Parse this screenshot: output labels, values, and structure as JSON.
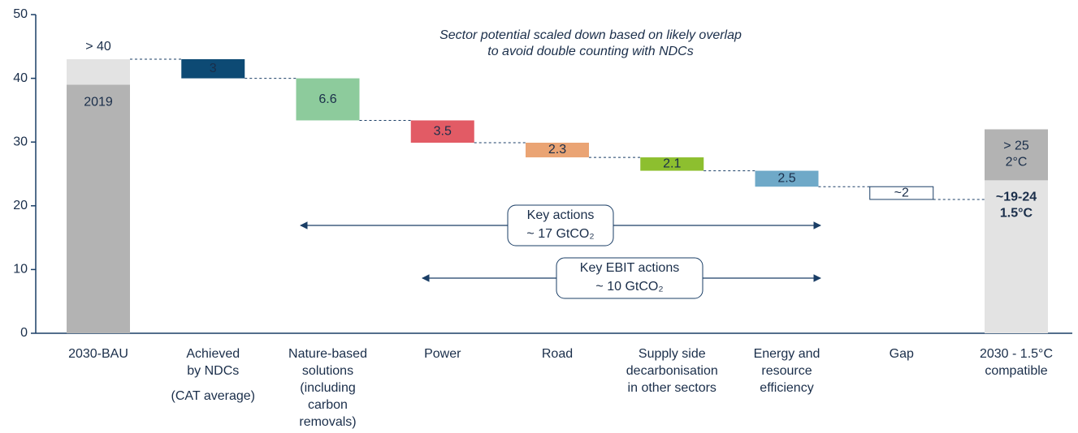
{
  "chart_data": {
    "type": "waterfall",
    "annotation": [
      "Sector potential scaled down based on likely overlap",
      "to avoid double counting with NDCs"
    ],
    "categories": [
      [
        "2030-BAU"
      ],
      [
        "Achieved",
        "by NDCs",
        "(CAT average)"
      ],
      [
        "Nature-based",
        "solutions",
        "(including",
        "carbon",
        "removals)"
      ],
      [
        "Power"
      ],
      [
        "Road"
      ],
      [
        "Supply side",
        "decarbonisation",
        "in other sectors"
      ],
      [
        "Energy and",
        "resource",
        "efficiency"
      ],
      [
        "Gap"
      ],
      [
        "2030 - 1.5°C",
        "compatible"
      ]
    ],
    "first": {
      "values": [
        39,
        4
      ],
      "colors": [
        "#b3b3b3",
        "#e3e3e3"
      ],
      "labels": [
        "2019"
      ],
      "top_label": "> 40"
    },
    "steps": {
      "values": [
        3,
        6.6,
        3.5,
        2.3,
        2.1,
        2.5
      ],
      "colors": [
        "#0d4a74",
        "#8dcb9c",
        "#e25b65",
        "#eaa474",
        "#8dbf2f",
        "#6fa9c8"
      ]
    },
    "gap": {
      "value": 2,
      "value_label": "~2"
    },
    "last": {
      "values": [
        24,
        8
      ],
      "colors": [
        "#e3e3e3",
        "#b3b3b3"
      ],
      "labels": [
        [
          "~19-24",
          "1.5°C"
        ],
        [
          "> 25",
          "2°C"
        ]
      ]
    },
    "spans": [
      [
        "Key actions",
        "~ 17 GtCO₂"
      ],
      [
        "Key EBIT actions",
        "~ 10 GtCO₂"
      ]
    ],
    "ylim": [
      0,
      50
    ],
    "yticks": [
      0,
      10,
      20,
      30,
      40,
      50
    ]
  }
}
